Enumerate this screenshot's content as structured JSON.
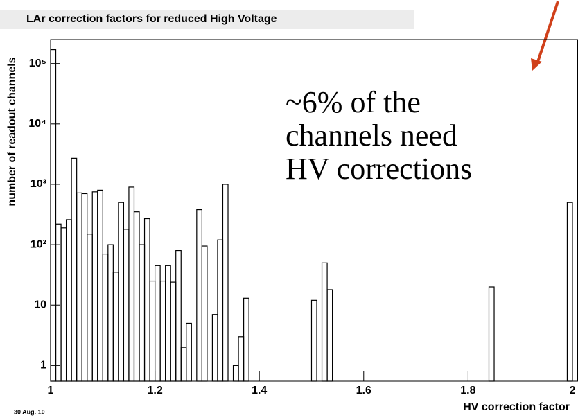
{
  "chart_data": {
    "type": "histogram",
    "title": "LAr correction factors for reduced High Voltage",
    "xlabel": "HV correction factor",
    "ylabel": "number of readout channels",
    "annotation": [
      "~6% of the",
      "channels need",
      "HV corrections"
    ],
    "date": "30 Aug. 10",
    "log_y": true,
    "color": "#000000",
    "bins": [
      1.0,
      1.01,
      1.02,
      1.03,
      1.04,
      1.05,
      1.06,
      1.07,
      1.08,
      1.09,
      1.1,
      1.11,
      1.12,
      1.13,
      1.14,
      1.15,
      1.16,
      1.17,
      1.18,
      1.19,
      1.2,
      1.21,
      1.22,
      1.23,
      1.24,
      1.25,
      1.26,
      1.27,
      1.28,
      1.29,
      1.3,
      1.31,
      1.32,
      1.33,
      1.34,
      1.35,
      1.36,
      1.37,
      1.38,
      1.39,
      1.4,
      1.41,
      1.42,
      1.43,
      1.44,
      1.45,
      1.46,
      1.47,
      1.48,
      1.49,
      1.5,
      1.51,
      1.52,
      1.53,
      1.54,
      1.55,
      1.56,
      1.57,
      1.58,
      1.59,
      1.6,
      1.61,
      1.62,
      1.63,
      1.64,
      1.65,
      1.66,
      1.67,
      1.68,
      1.69,
      1.7,
      1.71,
      1.72,
      1.73,
      1.74,
      1.75,
      1.76,
      1.77,
      1.78,
      1.79,
      1.8,
      1.81,
      1.82,
      1.83,
      1.84,
      1.85,
      1.86,
      1.87,
      1.88,
      1.89,
      1.9,
      1.91,
      1.92,
      1.93,
      1.94,
      1.95,
      1.96,
      1.97,
      1.98,
      1.99,
      2.0
    ],
    "counts": [
      170000,
      220,
      190,
      260,
      2700,
      720,
      700,
      150,
      750,
      800,
      70,
      100,
      35,
      500,
      180,
      900,
      350,
      100,
      270,
      25,
      45,
      25,
      45,
      24,
      80,
      2,
      5,
      0,
      380,
      95,
      0,
      7,
      120,
      1000,
      0,
      1,
      3,
      13,
      0,
      0,
      0,
      0,
      0,
      0,
      0,
      0,
      0,
      0,
      0,
      0,
      12,
      0,
      50,
      18,
      0,
      0,
      0,
      0,
      0,
      0,
      0,
      0,
      0,
      0,
      0,
      0,
      0,
      0,
      0,
      0,
      0,
      0,
      0,
      0,
      0,
      0,
      0,
      0,
      0,
      0,
      0,
      0,
      0,
      0,
      20,
      0,
      0,
      0,
      0,
      0,
      0,
      0,
      0,
      0,
      0,
      0,
      0,
      0,
      0,
      500
    ],
    "xlim": [
      1,
      2.01
    ],
    "ylim": [
      0.55,
      250000
    ],
    "xticks": [
      1,
      1.2,
      1.4,
      1.6,
      1.8,
      2
    ],
    "yticks": [
      1,
      10,
      {
        "value": 100,
        "label": "10²"
      },
      {
        "value": 1000,
        "label": "10³"
      },
      {
        "value": 10000,
        "label": "10⁴"
      },
      {
        "value": 100000,
        "label": "10⁵"
      }
    ]
  }
}
